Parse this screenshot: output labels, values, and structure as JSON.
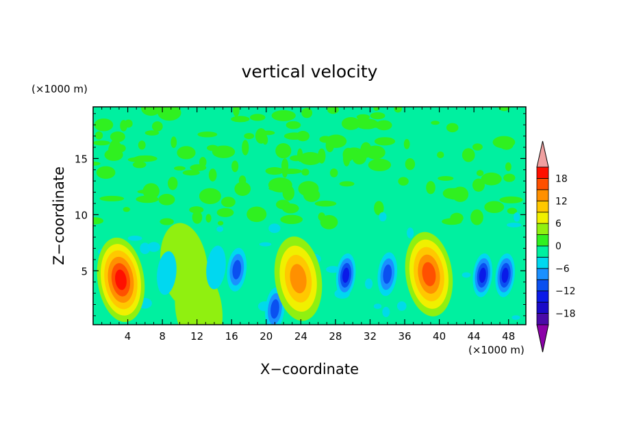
{
  "chart_data": {
    "type": "heatmap",
    "title": "vertical velocity",
    "xlabel": "X−coordinate",
    "ylabel": "Z−coordinate",
    "x_unit": "(×1000 m)",
    "z_unit": "(×1000 m)",
    "xlim": [
      0,
      50
    ],
    "zlim": [
      0.2,
      19.6
    ],
    "x_ticks": [
      4,
      8,
      12,
      16,
      20,
      24,
      28,
      32,
      36,
      40,
      44,
      48
    ],
    "x_tick_labels": [
      "4",
      "8",
      "12",
      "16",
      "20",
      "24",
      "28",
      "32",
      "36",
      "40",
      "44",
      "48"
    ],
    "z_ticks": [
      5,
      10,
      15
    ],
    "z_tick_labels": [
      "5",
      "10",
      "15"
    ],
    "colorbar": {
      "levels": [
        -21,
        -18,
        -15,
        -12,
        -9,
        -6,
        -3,
        0,
        3,
        6,
        9,
        12,
        15,
        18,
        21
      ],
      "tick_values": [
        -18,
        -12,
        -6,
        0,
        6,
        12,
        18
      ],
      "tick_labels": [
        "−18",
        "−12",
        "−6",
        "0",
        "6",
        "12",
        "18"
      ],
      "under_color": "#8b00a8",
      "over_color": "#f0a0a0",
      "colors": [
        "#4a0aa8",
        "#1a0ac8",
        "#0a1ae8",
        "#0a50f0",
        "#1a90ff",
        "#00d8f0",
        "#00f0a0",
        "#30f020",
        "#90f010",
        "#f0f000",
        "#ffc800",
        "#ff9000",
        "#ff5000",
        "#ff1000"
      ]
    },
    "features": [
      {
        "x": 3.2,
        "z": 4.2,
        "w": 18,
        "sign": "up"
      },
      {
        "x": 10.5,
        "z": 5.5,
        "w": 5,
        "sign": "up"
      },
      {
        "x": 12.2,
        "z": 1.6,
        "w": 4,
        "sign": "up"
      },
      {
        "x": 8.5,
        "z": 4.8,
        "w": -4,
        "sign": "down"
      },
      {
        "x": 14.2,
        "z": 5.3,
        "w": -4,
        "sign": "down"
      },
      {
        "x": 16.6,
        "z": 5.1,
        "w": -10,
        "sign": "down"
      },
      {
        "x": 21.0,
        "z": 1.6,
        "w": -10,
        "sign": "down"
      },
      {
        "x": 23.7,
        "z": 4.3,
        "w": 14,
        "sign": "up"
      },
      {
        "x": 29.2,
        "z": 4.6,
        "w": -12,
        "sign": "down"
      },
      {
        "x": 34.0,
        "z": 4.7,
        "w": -10,
        "sign": "down"
      },
      {
        "x": 38.8,
        "z": 4.7,
        "w": 17,
        "sign": "up"
      },
      {
        "x": 45.0,
        "z": 4.6,
        "w": -12,
        "sign": "down"
      },
      {
        "x": 47.6,
        "z": 4.6,
        "w": -14,
        "sign": "down"
      }
    ]
  }
}
